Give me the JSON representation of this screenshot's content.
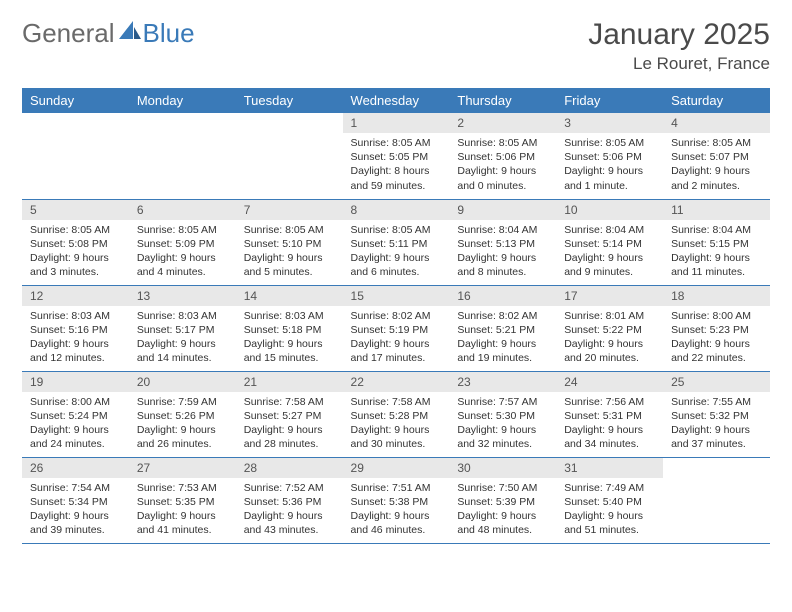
{
  "brand": {
    "general": "General",
    "blue": "Blue"
  },
  "title": {
    "month": "January 2025",
    "location": "Le Rouret, France"
  },
  "colors": {
    "header_bg": "#3a7ab8",
    "header_text": "#ffffff",
    "daynum_bg": "#e8e8e8",
    "border": "#3a7ab8",
    "logo_gray": "#6a6a6a",
    "logo_blue": "#3a7ab8",
    "title_color": "#4a4a4a",
    "body_text": "#333333"
  },
  "weekdays": [
    "Sunday",
    "Monday",
    "Tuesday",
    "Wednesday",
    "Thursday",
    "Friday",
    "Saturday"
  ],
  "weeks": [
    [
      null,
      null,
      null,
      {
        "n": "1",
        "sr": "Sunrise: 8:05 AM",
        "ss": "Sunset: 5:05 PM",
        "d1": "Daylight: 8 hours",
        "d2": "and 59 minutes."
      },
      {
        "n": "2",
        "sr": "Sunrise: 8:05 AM",
        "ss": "Sunset: 5:06 PM",
        "d1": "Daylight: 9 hours",
        "d2": "and 0 minutes."
      },
      {
        "n": "3",
        "sr": "Sunrise: 8:05 AM",
        "ss": "Sunset: 5:06 PM",
        "d1": "Daylight: 9 hours",
        "d2": "and 1 minute."
      },
      {
        "n": "4",
        "sr": "Sunrise: 8:05 AM",
        "ss": "Sunset: 5:07 PM",
        "d1": "Daylight: 9 hours",
        "d2": "and 2 minutes."
      }
    ],
    [
      {
        "n": "5",
        "sr": "Sunrise: 8:05 AM",
        "ss": "Sunset: 5:08 PM",
        "d1": "Daylight: 9 hours",
        "d2": "and 3 minutes."
      },
      {
        "n": "6",
        "sr": "Sunrise: 8:05 AM",
        "ss": "Sunset: 5:09 PM",
        "d1": "Daylight: 9 hours",
        "d2": "and 4 minutes."
      },
      {
        "n": "7",
        "sr": "Sunrise: 8:05 AM",
        "ss": "Sunset: 5:10 PM",
        "d1": "Daylight: 9 hours",
        "d2": "and 5 minutes."
      },
      {
        "n": "8",
        "sr": "Sunrise: 8:05 AM",
        "ss": "Sunset: 5:11 PM",
        "d1": "Daylight: 9 hours",
        "d2": "and 6 minutes."
      },
      {
        "n": "9",
        "sr": "Sunrise: 8:04 AM",
        "ss": "Sunset: 5:13 PM",
        "d1": "Daylight: 9 hours",
        "d2": "and 8 minutes."
      },
      {
        "n": "10",
        "sr": "Sunrise: 8:04 AM",
        "ss": "Sunset: 5:14 PM",
        "d1": "Daylight: 9 hours",
        "d2": "and 9 minutes."
      },
      {
        "n": "11",
        "sr": "Sunrise: 8:04 AM",
        "ss": "Sunset: 5:15 PM",
        "d1": "Daylight: 9 hours",
        "d2": "and 11 minutes."
      }
    ],
    [
      {
        "n": "12",
        "sr": "Sunrise: 8:03 AM",
        "ss": "Sunset: 5:16 PM",
        "d1": "Daylight: 9 hours",
        "d2": "and 12 minutes."
      },
      {
        "n": "13",
        "sr": "Sunrise: 8:03 AM",
        "ss": "Sunset: 5:17 PM",
        "d1": "Daylight: 9 hours",
        "d2": "and 14 minutes."
      },
      {
        "n": "14",
        "sr": "Sunrise: 8:03 AM",
        "ss": "Sunset: 5:18 PM",
        "d1": "Daylight: 9 hours",
        "d2": "and 15 minutes."
      },
      {
        "n": "15",
        "sr": "Sunrise: 8:02 AM",
        "ss": "Sunset: 5:19 PM",
        "d1": "Daylight: 9 hours",
        "d2": "and 17 minutes."
      },
      {
        "n": "16",
        "sr": "Sunrise: 8:02 AM",
        "ss": "Sunset: 5:21 PM",
        "d1": "Daylight: 9 hours",
        "d2": "and 19 minutes."
      },
      {
        "n": "17",
        "sr": "Sunrise: 8:01 AM",
        "ss": "Sunset: 5:22 PM",
        "d1": "Daylight: 9 hours",
        "d2": "and 20 minutes."
      },
      {
        "n": "18",
        "sr": "Sunrise: 8:00 AM",
        "ss": "Sunset: 5:23 PM",
        "d1": "Daylight: 9 hours",
        "d2": "and 22 minutes."
      }
    ],
    [
      {
        "n": "19",
        "sr": "Sunrise: 8:00 AM",
        "ss": "Sunset: 5:24 PM",
        "d1": "Daylight: 9 hours",
        "d2": "and 24 minutes."
      },
      {
        "n": "20",
        "sr": "Sunrise: 7:59 AM",
        "ss": "Sunset: 5:26 PM",
        "d1": "Daylight: 9 hours",
        "d2": "and 26 minutes."
      },
      {
        "n": "21",
        "sr": "Sunrise: 7:58 AM",
        "ss": "Sunset: 5:27 PM",
        "d1": "Daylight: 9 hours",
        "d2": "and 28 minutes."
      },
      {
        "n": "22",
        "sr": "Sunrise: 7:58 AM",
        "ss": "Sunset: 5:28 PM",
        "d1": "Daylight: 9 hours",
        "d2": "and 30 minutes."
      },
      {
        "n": "23",
        "sr": "Sunrise: 7:57 AM",
        "ss": "Sunset: 5:30 PM",
        "d1": "Daylight: 9 hours",
        "d2": "and 32 minutes."
      },
      {
        "n": "24",
        "sr": "Sunrise: 7:56 AM",
        "ss": "Sunset: 5:31 PM",
        "d1": "Daylight: 9 hours",
        "d2": "and 34 minutes."
      },
      {
        "n": "25",
        "sr": "Sunrise: 7:55 AM",
        "ss": "Sunset: 5:32 PM",
        "d1": "Daylight: 9 hours",
        "d2": "and 37 minutes."
      }
    ],
    [
      {
        "n": "26",
        "sr": "Sunrise: 7:54 AM",
        "ss": "Sunset: 5:34 PM",
        "d1": "Daylight: 9 hours",
        "d2": "and 39 minutes."
      },
      {
        "n": "27",
        "sr": "Sunrise: 7:53 AM",
        "ss": "Sunset: 5:35 PM",
        "d1": "Daylight: 9 hours",
        "d2": "and 41 minutes."
      },
      {
        "n": "28",
        "sr": "Sunrise: 7:52 AM",
        "ss": "Sunset: 5:36 PM",
        "d1": "Daylight: 9 hours",
        "d2": "and 43 minutes."
      },
      {
        "n": "29",
        "sr": "Sunrise: 7:51 AM",
        "ss": "Sunset: 5:38 PM",
        "d1": "Daylight: 9 hours",
        "d2": "and 46 minutes."
      },
      {
        "n": "30",
        "sr": "Sunrise: 7:50 AM",
        "ss": "Sunset: 5:39 PM",
        "d1": "Daylight: 9 hours",
        "d2": "and 48 minutes."
      },
      {
        "n": "31",
        "sr": "Sunrise: 7:49 AM",
        "ss": "Sunset: 5:40 PM",
        "d1": "Daylight: 9 hours",
        "d2": "and 51 minutes."
      },
      null
    ]
  ]
}
